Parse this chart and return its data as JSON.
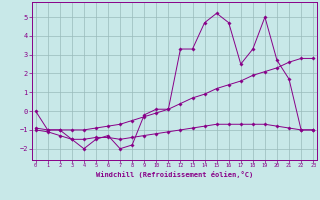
{
  "line1_x": [
    0,
    1,
    2,
    3,
    4,
    5,
    6,
    7,
    8,
    9,
    10,
    11,
    12,
    13,
    14,
    15,
    16,
    17,
    18,
    19,
    20,
    21,
    22,
    23
  ],
  "line1_y": [
    0,
    -1,
    -1,
    -1.5,
    -2,
    -1.5,
    -1.3,
    -2,
    -1.8,
    -0.2,
    0.1,
    0.1,
    3.3,
    3.3,
    4.7,
    5.2,
    4.7,
    2.5,
    3.3,
    5.0,
    2.7,
    1.7,
    -1.0,
    -1.0
  ],
  "line2_x": [
    0,
    1,
    2,
    3,
    4,
    5,
    6,
    7,
    8,
    9,
    10,
    11,
    12,
    13,
    14,
    15,
    16,
    17,
    18,
    19,
    20,
    21,
    22,
    23
  ],
  "line2_y": [
    -0.9,
    -1.0,
    -1.0,
    -1.0,
    -1.0,
    -0.9,
    -0.8,
    -0.7,
    -0.5,
    -0.3,
    -0.1,
    0.1,
    0.4,
    0.7,
    0.9,
    1.2,
    1.4,
    1.6,
    1.9,
    2.1,
    2.3,
    2.6,
    2.8,
    2.8
  ],
  "line3_x": [
    0,
    1,
    2,
    3,
    4,
    5,
    6,
    7,
    8,
    9,
    10,
    11,
    12,
    13,
    14,
    15,
    16,
    17,
    18,
    19,
    20,
    21,
    22,
    23
  ],
  "line3_y": [
    -1.0,
    -1.1,
    -1.3,
    -1.5,
    -1.5,
    -1.4,
    -1.4,
    -1.5,
    -1.4,
    -1.3,
    -1.2,
    -1.1,
    -1.0,
    -0.9,
    -0.8,
    -0.7,
    -0.7,
    -0.7,
    -0.7,
    -0.7,
    -0.8,
    -0.9,
    -1.0,
    -1.0
  ],
  "color": "#880088",
  "bg_color": "#c8e8e8",
  "grid_color": "#99bbbb",
  "xlabel": "Windchill (Refroidissement éolien,°C)",
  "ylim": [
    -2.6,
    5.8
  ],
  "xlim": [
    -0.3,
    23.3
  ],
  "yticks": [
    -2,
    -1,
    0,
    1,
    2,
    3,
    4,
    5
  ],
  "xticks": [
    0,
    1,
    2,
    3,
    4,
    5,
    6,
    7,
    8,
    9,
    10,
    11,
    12,
    13,
    14,
    15,
    16,
    17,
    18,
    19,
    20,
    21,
    22,
    23
  ]
}
